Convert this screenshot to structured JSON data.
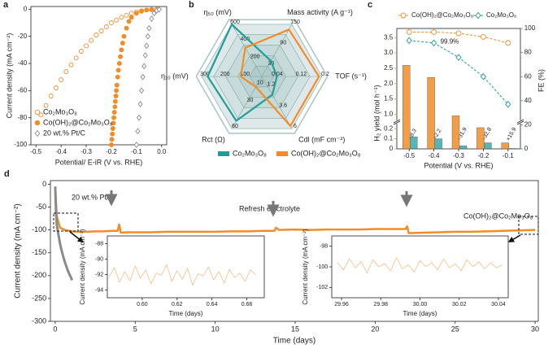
{
  "chart_data": [
    {
      "panel": "a",
      "type": "scatter",
      "xlabel": "Potential/ E-iR (V vs. RHE)",
      "ylabel": "Current density (mA cm⁻²)",
      "xlim": [
        -0.52,
        0.02
      ],
      "xticks": [
        -0.5,
        -0.4,
        -0.3,
        -0.2,
        -0.1,
        {
          "value": 0,
          "label": "0.0"
        }
      ],
      "ylim": [
        -100,
        2
      ],
      "yticks": [
        -100,
        -80,
        -60,
        -40,
        -20,
        0
      ],
      "legend": "lower left",
      "series": [
        {
          "name": "Co₂Mo₃O₈",
          "color": "#f28c28",
          "marker": "open-circle",
          "x": [
            -0.48,
            -0.46,
            -0.44,
            -0.42,
            -0.4,
            -0.38,
            -0.36,
            -0.34,
            -0.32,
            -0.3,
            -0.28,
            -0.26,
            -0.24,
            -0.22,
            -0.2,
            -0.18,
            -0.16,
            -0.14,
            -0.12,
            -0.1,
            -0.08,
            -0.06,
            -0.04,
            -0.02
          ],
          "values": [
            -78,
            -71,
            -64,
            -58,
            -52,
            -46,
            -41,
            -36,
            -31,
            -27,
            -23,
            -19,
            -16,
            -13,
            -10,
            -8,
            -6,
            -4.5,
            -3,
            -2,
            -1.2,
            -0.6,
            -0.3,
            -0.1
          ]
        },
        {
          "name": "Co(OH)₂@Co₂Mo₃O₈",
          "color": "#f28c28",
          "marker": "filled-circle",
          "x": [
            -0.2,
            -0.198,
            -0.196,
            -0.194,
            -0.192,
            -0.19,
            -0.188,
            -0.186,
            -0.184,
            -0.182,
            -0.18,
            -0.178,
            -0.175,
            -0.172,
            -0.168,
            -0.164,
            -0.16,
            -0.155,
            -0.15,
            -0.14,
            -0.13,
            -0.12,
            -0.1,
            -0.08,
            -0.06,
            -0.04
          ],
          "values": [
            -100,
            -96,
            -92,
            -88,
            -84,
            -80,
            -76,
            -72,
            -68,
            -64,
            -60,
            -56,
            -50,
            -45,
            -40,
            -35,
            -30,
            -25,
            -20,
            -14,
            -9,
            -6,
            -3,
            -1.5,
            -0.6,
            -0.2
          ]
        },
        {
          "name": "20 wt.% Pt/C",
          "color": "#8a8a8a",
          "marker": "open-diamond",
          "x": [
            -0.1,
            -0.095,
            -0.09,
            -0.085,
            -0.08,
            -0.075,
            -0.07,
            -0.065,
            -0.06,
            -0.055,
            -0.05,
            -0.04,
            -0.03,
            -0.02,
            -0.01
          ],
          "values": [
            -100,
            -90,
            -80,
            -70,
            -60,
            -50,
            -42,
            -34,
            -27,
            -20,
            -14,
            -7,
            -3,
            -1,
            -0.2
          ]
        }
      ]
    },
    {
      "panel": "b",
      "type": "radar",
      "axes": [
        {
          "label": "Mass activity (A g⁻¹)",
          "color": "#f28c28",
          "lim": [
            0,
            150
          ],
          "ticks": [
            30,
            90,
            150
          ]
        },
        {
          "label": "TOF (s⁻¹)",
          "color": "#1f6f8b",
          "lim": [
            0,
            0.2
          ],
          "ticks": [
            0.04,
            0.12,
            0.2
          ]
        },
        {
          "label": "Cdl (mF cm⁻²)",
          "color": "#222222",
          "lim": [
            0,
            6
          ],
          "ticks": [
            1.2,
            3.6,
            6
          ]
        },
        {
          "label": "Rct (Ω)",
          "color": "#d6336c",
          "lim": [
            0,
            60
          ],
          "ticks": [
            10,
            30,
            60
          ]
        },
        {
          "label": "η₁₀ (mV)",
          "color": "#d6336c",
          "lim": [
            0,
            300
          ],
          "ticks": [
            100,
            200,
            300
          ]
        },
        {
          "label": "η₅₀ (mV)",
          "color": "#d6336c",
          "lim": [
            0,
            600
          ],
          "ticks": [
            200,
            400,
            600
          ]
        }
      ],
      "series": [
        {
          "name": "Co₂Mo₃O₈",
          "color": "#1f9e99",
          "values": [
            45,
            0.05,
            2.1,
            51,
            270,
            600
          ]
        },
        {
          "name": "Co(OH)₂@Co₂Mo₃O₈",
          "color": "#f28c28",
          "values": [
            135,
            0.19,
            5.7,
            12,
            105,
            330
          ]
        }
      ]
    },
    {
      "panel": "c",
      "type": "bar",
      "xlabel": "Potential (V vs. RHE)",
      "ylabel": "H₂ yield (mol h⁻¹)",
      "y2label": "FE (%)",
      "categories": [
        "-0.5",
        "-0.4",
        "-0.3",
        "-0.2",
        "-0.1"
      ],
      "ylim": [
        0,
        3.8
      ],
      "y_break": [
        0.25,
        0.8
      ],
      "yticks": [
        0,
        0.1,
        0.2,
        {
          "value": 1,
          "label": "1.0"
        },
        1.5,
        {
          "value": 2,
          "label": "2.0"
        },
        2.5,
        {
          "value": 3,
          "label": "3.0"
        },
        3.5
      ],
      "y2lim": [
        0,
        100
      ],
      "y2ticks": [
        0,
        20,
        40,
        60,
        80,
        100
      ],
      "series": [
        {
          "name": "Co(OH)₂@Co₂Mo₃O₈",
          "color": "#f28c28",
          "marker": "open-circle",
          "values": [
            2.6,
            2.2,
            0.95,
            0.21,
            0.06
          ],
          "fe": [
            97,
            97,
            96,
            93,
            88
          ]
        },
        {
          "name": "Co₂Mo₃O₈",
          "color": "#1f9e99",
          "marker": "open-diamond",
          "values": [
            0.12,
            0.1,
            0.03,
            0.06,
            0.004
          ],
          "fe": [
            90,
            88,
            76,
            60,
            37
          ]
        }
      ],
      "annotation": "99.9%",
      "ratio_labels": [
        "×8.3",
        "×2.2",
        "×31.9",
        "×32.8",
        "×15.9"
      ]
    },
    {
      "panel": "d",
      "type": "line",
      "xlabel": "Time (days)",
      "ylabel": "Current density (mA cm⁻²)",
      "xlim": [
        -0.3,
        30.2
      ],
      "xticks": [
        0,
        5,
        10,
        15,
        20,
        25,
        30
      ],
      "ylim": [
        -300,
        8
      ],
      "yticks": [
        -300,
        -250,
        -200,
        -150,
        -100,
        -50,
        0
      ],
      "annotation": "Refresh electrolyte",
      "series": [
        {
          "name": "Co(OH)₂@Co₂Mo₃O₈",
          "color": "#f28c28",
          "x": [
            0,
            0.1,
            0.3,
            0.6,
            1,
            1.5,
            2,
            2.5,
            3,
            3.5,
            3.9,
            4,
            4.1,
            4.5,
            5,
            6,
            7,
            8,
            9,
            10,
            11,
            12,
            13,
            13.7,
            13.8,
            14,
            15,
            16,
            17,
            18,
            19,
            20,
            21,
            21.9,
            22,
            22.1,
            23,
            24,
            25,
            26,
            27,
            28,
            29,
            30
          ],
          "values": [
            -5,
            -70,
            -95,
            -100,
            -103,
            -104,
            -104,
            -103,
            -103,
            -102,
            -102,
            -88,
            -106,
            -105,
            -105,
            -105,
            -104,
            -104,
            -104,
            -104,
            -103,
            -103,
            -102,
            -102,
            -95,
            -100,
            -99,
            -100,
            -99,
            -99,
            -99,
            -98,
            -98,
            -98,
            -92,
            -107,
            -106,
            -105,
            -104,
            -104,
            -103,
            -102,
            -101,
            -100
          ]
        },
        {
          "name": "20 wt.% Pt/C",
          "color": "#8a8a8a",
          "x": [
            0,
            0.05,
            0.1,
            0.2,
            0.3,
            0.4,
            0.5,
            0.6,
            0.7,
            0.8,
            0.9,
            1,
            1.05
          ],
          "values": [
            -5,
            -60,
            -90,
            -110,
            -130,
            -145,
            -158,
            -170,
            -180,
            -190,
            -198,
            -205,
            -210
          ]
        }
      ]
    },
    {
      "type": "line",
      "xlabel": "Time (days)",
      "ylabel": "Current density (mA cm⁻²)",
      "xlim": [
        0.58,
        0.67
      ],
      "xticks": [
        {
          "value": 0.6,
          "label": "0.60"
        },
        0.62,
        0.64,
        0.66
      ],
      "ylim": [
        -95,
        -87
      ],
      "yticks": [
        -88,
        -90,
        -92,
        -94
      ],
      "series": [
        {
          "color": "#f7a95c",
          "x": [
            0.581,
            0.584,
            0.587,
            0.59,
            0.593,
            0.596,
            0.599,
            0.602,
            0.605,
            0.608,
            0.611,
            0.614,
            0.617,
            0.62,
            0.623,
            0.626,
            0.629,
            0.632,
            0.635,
            0.638,
            0.641,
            0.644,
            0.647,
            0.65,
            0.653,
            0.656,
            0.659,
            0.662,
            0.665
          ],
          "values": [
            -92.3,
            -91.1,
            -93,
            -91.6,
            -92.8,
            -90.9,
            -92.5,
            -91.4,
            -93.2,
            -91.8,
            -92.1,
            -90.7,
            -92.9,
            -91.5,
            -92.6,
            -91.2,
            -93.4,
            -91.9,
            -92.2,
            -91,
            -92.7,
            -91.6,
            -93.1,
            -91.3,
            -92.4,
            -91.8,
            -92.9,
            -91.4,
            -92
          ]
        }
      ]
    },
    {
      "type": "line",
      "xlabel": "Time (days)",
      "ylabel": "Current density (mA cm⁻²)",
      "xlim": [
        29.955,
        30.045
      ],
      "xticks": [
        29.96,
        29.98,
        {
          "value": 30,
          "label": "30.00"
        },
        30.02,
        30.04
      ],
      "ylim": [
        -103,
        -97
      ],
      "yticks": [
        -98,
        -100,
        -102
      ],
      "series": [
        {
          "color": "#f7a95c",
          "x": [
            29.958,
            29.961,
            29.964,
            29.967,
            29.97,
            29.973,
            29.976,
            29.979,
            29.982,
            29.985,
            29.988,
            29.991,
            29.994,
            29.997,
            30,
            30.003,
            30.006,
            30.009,
            30.012,
            30.015,
            30.018,
            30.021,
            30.024,
            30.027,
            30.03,
            30.033,
            30.036,
            30.039,
            30.042
          ],
          "values": [
            -99.6,
            -100.3,
            -99.2,
            -100.1,
            -99.5,
            -100.6,
            -99.3,
            -100,
            -99.7,
            -100.4,
            -99.1,
            -100.2,
            -99.8,
            -100.5,
            -99.4,
            -100,
            -99.6,
            -100.3,
            -99.2,
            -100.1,
            -99.7,
            -100.4,
            -99.3,
            -100,
            -99.5,
            -100.2,
            -99.6,
            -100.1,
            -99.8
          ]
        }
      ]
    }
  ]
}
